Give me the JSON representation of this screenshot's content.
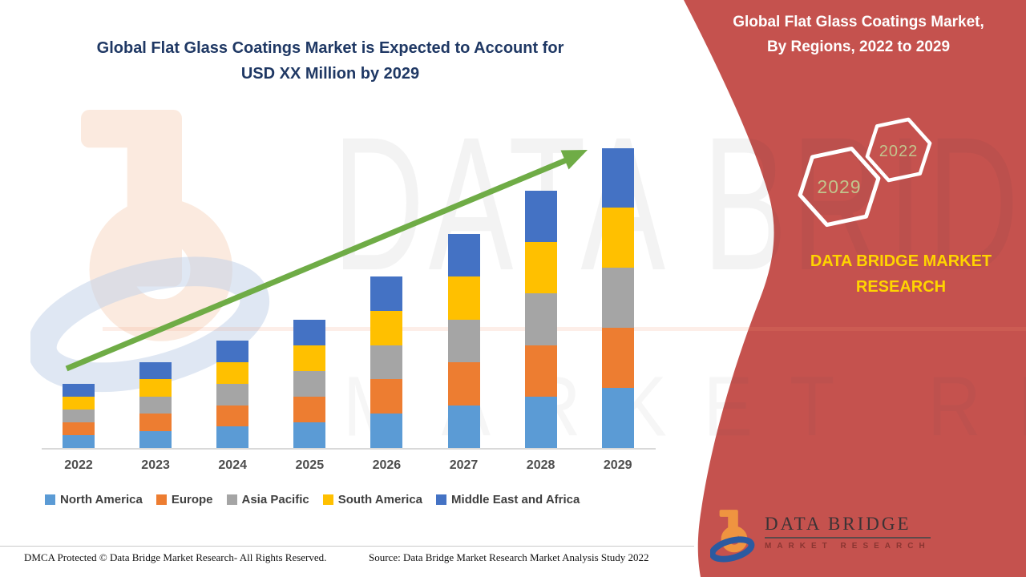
{
  "main": {
    "title_line1": "Global Flat Glass Coatings Market is Expected to Account for",
    "title_line2": "USD XX Million by 2029"
  },
  "chart_data": {
    "type": "bar",
    "stacked": true,
    "title": "Global Flat Glass Coatings Market, By Regions, 2022 to 2029",
    "xlabel": "",
    "ylabel": "",
    "unit": "USD Million (values shown as XX, not labeled; series values estimated relative heights)",
    "grid": false,
    "legend_position": "bottom",
    "categories": [
      "2022",
      "2023",
      "2024",
      "2025",
      "2026",
      "2027",
      "2028",
      "2029"
    ],
    "series": [
      {
        "name": "North America",
        "color": "#5B9BD5",
        "values": [
          0.3,
          0.4,
          0.5,
          0.6,
          0.8,
          1.0,
          1.2,
          1.4
        ]
      },
      {
        "name": "Europe",
        "color": "#ED7D31",
        "values": [
          0.3,
          0.4,
          0.5,
          0.6,
          0.8,
          1.0,
          1.2,
          1.4
        ]
      },
      {
        "name": "Asia Pacific",
        "color": "#A5A5A5",
        "values": [
          0.3,
          0.4,
          0.5,
          0.6,
          0.8,
          1.0,
          1.2,
          1.4
        ]
      },
      {
        "name": "South America",
        "color": "#FFC000",
        "values": [
          0.3,
          0.4,
          0.5,
          0.6,
          0.8,
          1.0,
          1.2,
          1.4
        ]
      },
      {
        "name": "Middle East and Africa",
        "color": "#4472C4",
        "values": [
          0.3,
          0.4,
          0.5,
          0.6,
          0.8,
          1.0,
          1.2,
          1.4
        ]
      }
    ],
    "trend_arrow": {
      "present": true,
      "color": "#6FAC46",
      "direction": "up-right"
    }
  },
  "side_panel": {
    "background_color": "#C5524E",
    "title_line1": "Global Flat Glass Coatings Market,",
    "title_line2": "By Regions, 2022 to 2029",
    "badge_small": "2022",
    "badge_large": "2029",
    "badge_text_color": "#C2C48C",
    "brand_line1": "DATA BRIDGE MARKET",
    "brand_line2": "RESEARCH",
    "brand_text_color": "#FFD400"
  },
  "logo": {
    "name_text": "DATA BRIDGE",
    "tagline_text": "MARKET RESEARCH"
  },
  "watermark": {
    "text_top": "DATA BRIDGE",
    "text_bottom": "MARKET RESEARCH"
  },
  "footer": {
    "left_text": "DMCA Protected © Data Bridge Market Research- All Rights Reserved.",
    "right_text": "Source: Data Bridge Market Research Market Analysis Study 2022"
  }
}
